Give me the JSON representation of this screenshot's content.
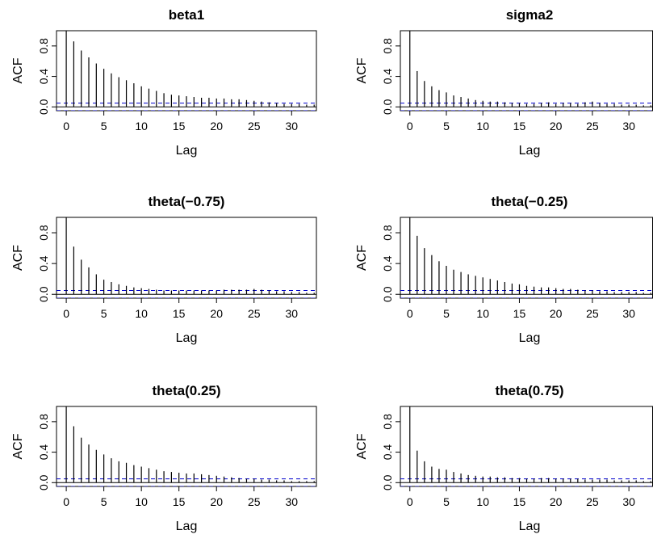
{
  "chart_data": [
    {
      "type": "bar",
      "title": "beta1",
      "xlabel": "Lag",
      "ylabel": "ACF",
      "xlim": [
        -1.3,
        33.3
      ],
      "ylim": [
        -0.05,
        1.0
      ],
      "x_ticks": [
        0,
        5,
        10,
        15,
        20,
        25,
        30
      ],
      "y_ticks": [
        0.0,
        0.4,
        0.8
      ],
      "y_tick_labels": [
        "0.0",
        "0.4",
        "0.8"
      ],
      "conf_band": 0.05,
      "conf_color": "#0000cc",
      "x": [
        0,
        1,
        2,
        3,
        4,
        5,
        6,
        7,
        8,
        9,
        10,
        11,
        12,
        13,
        14,
        15,
        16,
        17,
        18,
        19,
        20,
        21,
        22,
        23,
        24,
        25,
        26,
        27,
        28,
        29,
        30,
        31,
        32,
        33
      ],
      "values": [
        1.0,
        0.86,
        0.74,
        0.65,
        0.57,
        0.5,
        0.44,
        0.39,
        0.35,
        0.31,
        0.27,
        0.24,
        0.21,
        0.18,
        0.16,
        0.15,
        0.14,
        0.13,
        0.12,
        0.12,
        0.11,
        0.11,
        0.1,
        0.1,
        0.09,
        0.08,
        0.07,
        0.06,
        0.05,
        0.04,
        0.04,
        0.04,
        0.03,
        0.03
      ]
    },
    {
      "type": "bar",
      "title": "sigma2",
      "xlabel": "Lag",
      "ylabel": "ACF",
      "xlim": [
        -1.3,
        33.3
      ],
      "ylim": [
        -0.05,
        1.0
      ],
      "x_ticks": [
        0,
        5,
        10,
        15,
        20,
        25,
        30
      ],
      "y_ticks": [
        0.0,
        0.4,
        0.8
      ],
      "y_tick_labels": [
        "0.0",
        "0.4",
        "0.8"
      ],
      "conf_band": 0.05,
      "conf_color": "#0000cc",
      "x": [
        0,
        1,
        2,
        3,
        4,
        5,
        6,
        7,
        8,
        9,
        10,
        11,
        12,
        13,
        14,
        15,
        16,
        17,
        18,
        19,
        20,
        21,
        22,
        23,
        24,
        25,
        26,
        27,
        28,
        29,
        30,
        31,
        32,
        33
      ],
      "values": [
        1.0,
        0.47,
        0.34,
        0.27,
        0.22,
        0.19,
        0.15,
        0.13,
        0.11,
        0.09,
        0.08,
        0.07,
        0.07,
        0.06,
        0.05,
        0.05,
        0.04,
        0.04,
        0.05,
        0.06,
        0.04,
        0.05,
        0.05,
        0.04,
        0.06,
        0.07,
        0.05,
        0.04,
        0.04,
        0.03,
        0.03,
        0.03,
        0.02,
        0.02
      ]
    },
    {
      "type": "bar",
      "title": "theta(−0.75)",
      "xlabel": "Lag",
      "ylabel": "ACF",
      "xlim": [
        -1.3,
        33.3
      ],
      "ylim": [
        -0.05,
        1.0
      ],
      "x_ticks": [
        0,
        5,
        10,
        15,
        20,
        25,
        30
      ],
      "y_ticks": [
        0.0,
        0.4,
        0.8
      ],
      "y_tick_labels": [
        "0.0",
        "0.4",
        "0.8"
      ],
      "conf_band": 0.05,
      "conf_color": "#0000cc",
      "x": [
        0,
        1,
        2,
        3,
        4,
        5,
        6,
        7,
        8,
        9,
        10,
        11,
        12,
        13,
        14,
        15,
        16,
        17,
        18,
        19,
        20,
        21,
        22,
        23,
        24,
        25,
        26,
        27,
        28,
        29,
        30,
        31,
        32,
        33
      ],
      "values": [
        1.0,
        0.62,
        0.45,
        0.35,
        0.26,
        0.19,
        0.16,
        0.13,
        0.11,
        0.09,
        0.08,
        0.07,
        0.06,
        0.05,
        0.05,
        0.05,
        0.05,
        0.05,
        0.05,
        0.05,
        0.05,
        0.06,
        0.06,
        0.06,
        0.06,
        0.07,
        0.06,
        0.05,
        0.04,
        0.04,
        0.03,
        0.03,
        0.02,
        0.02
      ]
    },
    {
      "type": "bar",
      "title": "theta(−0.25)",
      "xlabel": "Lag",
      "ylabel": "ACF",
      "xlim": [
        -1.3,
        33.3
      ],
      "ylim": [
        -0.05,
        1.0
      ],
      "x_ticks": [
        0,
        5,
        10,
        15,
        20,
        25,
        30
      ],
      "y_ticks": [
        0.0,
        0.4,
        0.8
      ],
      "y_tick_labels": [
        "0.0",
        "0.4",
        "0.8"
      ],
      "conf_band": 0.05,
      "conf_color": "#0000cc",
      "x": [
        0,
        1,
        2,
        3,
        4,
        5,
        6,
        7,
        8,
        9,
        10,
        11,
        12,
        13,
        14,
        15,
        16,
        17,
        18,
        19,
        20,
        21,
        22,
        23,
        24,
        25,
        26,
        27,
        28,
        29,
        30,
        31,
        32,
        33
      ],
      "values": [
        1.0,
        0.76,
        0.6,
        0.51,
        0.43,
        0.37,
        0.32,
        0.29,
        0.26,
        0.24,
        0.22,
        0.2,
        0.18,
        0.16,
        0.14,
        0.13,
        0.11,
        0.1,
        0.09,
        0.09,
        0.08,
        0.07,
        0.07,
        0.06,
        0.05,
        0.05,
        0.04,
        0.04,
        0.03,
        0.03,
        0.03,
        0.03,
        0.02,
        0.02
      ]
    },
    {
      "type": "bar",
      "title": "theta(0.25)",
      "xlabel": "Lag",
      "ylabel": "ACF",
      "xlim": [
        -1.3,
        33.3
      ],
      "ylim": [
        -0.05,
        1.0
      ],
      "x_ticks": [
        0,
        5,
        10,
        15,
        20,
        25,
        30
      ],
      "y_ticks": [
        0.0,
        0.4,
        0.8
      ],
      "y_tick_labels": [
        "0.0",
        "0.4",
        "0.8"
      ],
      "conf_band": 0.05,
      "conf_color": "#0000cc",
      "x": [
        0,
        1,
        2,
        3,
        4,
        5,
        6,
        7,
        8,
        9,
        10,
        11,
        12,
        13,
        14,
        15,
        16,
        17,
        18,
        19,
        20,
        21,
        22,
        23,
        24,
        25,
        26,
        27,
        28,
        29,
        30,
        31,
        32,
        33
      ],
      "values": [
        1.0,
        0.74,
        0.59,
        0.5,
        0.43,
        0.37,
        0.32,
        0.28,
        0.26,
        0.23,
        0.21,
        0.19,
        0.17,
        0.15,
        0.14,
        0.13,
        0.12,
        0.12,
        0.11,
        0.1,
        0.09,
        0.08,
        0.07,
        0.06,
        0.05,
        0.05,
        0.04,
        0.04,
        0.03,
        0.03,
        0.02,
        0.02,
        0.02,
        0.02
      ]
    },
    {
      "type": "bar",
      "title": "theta(0.75)",
      "xlabel": "Lag",
      "ylabel": "ACF",
      "xlim": [
        -1.3,
        33.3
      ],
      "ylim": [
        -0.05,
        1.0
      ],
      "x_ticks": [
        0,
        5,
        10,
        15,
        20,
        25,
        30
      ],
      "y_ticks": [
        0.0,
        0.4,
        0.8
      ],
      "y_tick_labels": [
        "0.0",
        "0.4",
        "0.8"
      ],
      "conf_band": 0.05,
      "conf_color": "#0000cc",
      "x": [
        0,
        1,
        2,
        3,
        4,
        5,
        6,
        7,
        8,
        9,
        10,
        11,
        12,
        13,
        14,
        15,
        16,
        17,
        18,
        19,
        20,
        21,
        22,
        23,
        24,
        25,
        26,
        27,
        28,
        29,
        30,
        31,
        32,
        33
      ],
      "values": [
        1.0,
        0.42,
        0.28,
        0.21,
        0.18,
        0.17,
        0.14,
        0.12,
        0.1,
        0.09,
        0.08,
        0.08,
        0.07,
        0.07,
        0.06,
        0.06,
        0.05,
        0.05,
        0.06,
        0.06,
        0.05,
        0.05,
        0.05,
        0.05,
        0.04,
        0.04,
        0.04,
        0.04,
        0.03,
        0.03,
        0.03,
        0.03,
        0.02,
        0.02
      ]
    }
  ]
}
